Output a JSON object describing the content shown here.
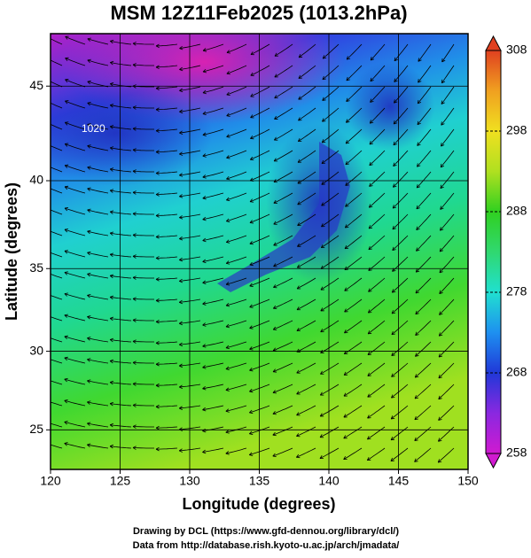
{
  "chart_data": {
    "type": "map",
    "title": "MSM 12Z11Feb2025 (1013.2hPa)",
    "x_label": "Longitude (degrees)",
    "y_label": "Latitude  (degrees)",
    "xlim": [
      120,
      150
    ],
    "ylim": [
      22.4,
      47.6
    ],
    "yscale": "mercator",
    "xticks": [
      120,
      125,
      130,
      135,
      140,
      145,
      150
    ],
    "yticks": [
      25,
      30,
      35,
      40,
      45
    ],
    "grid": true,
    "annotations": [
      "1020"
    ],
    "colorbar": {
      "range": [
        258,
        308
      ],
      "ticks": [
        258,
        268,
        278,
        288,
        298,
        308
      ],
      "colors": [
        "#d01ad0",
        "#8a28e0",
        "#2038d8",
        "#1e90f0",
        "#20e0d0",
        "#30d870",
        "#30d020",
        "#b0e020",
        "#f0e020",
        "#f0a020",
        "#e04020"
      ]
    },
    "footer": [
      "Drawing by DCL (https://www.gfd-dennou.org/library/dcl/)",
      "Data from http://database.rish.kyoto-u.ac.jp/arch/jmadata/"
    ]
  }
}
